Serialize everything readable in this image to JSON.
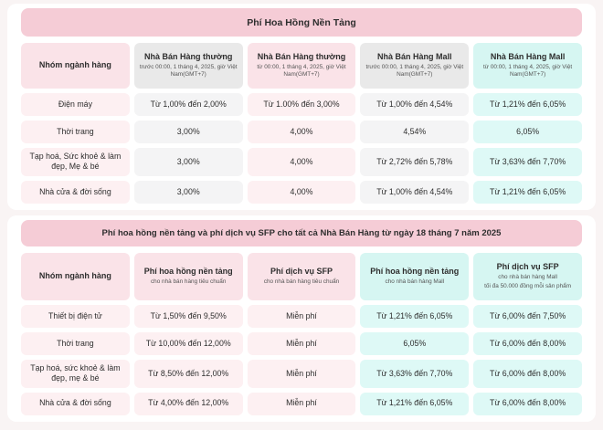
{
  "colors": {
    "page_background": "#f9f4f4",
    "card_background": "#ffffff",
    "title_bar_pink": "#f5ccd6",
    "header_pink": "#fae3e8",
    "header_gray": "#e9e9e9",
    "header_cyan": "#d6f6f2",
    "cell_pink": "#fdf0f2",
    "cell_gray": "#f4f4f5",
    "cell_cyan": "#def9f6",
    "text": "#2e2e2e"
  },
  "table1": {
    "title": "Phí Hoa Hồng Nền Tảng",
    "columns": [
      {
        "label": "Nhóm ngành hàng",
        "sub": ""
      },
      {
        "label": "Nhà Bán Hàng thường",
        "sub": "trước 00:00, 1 tháng 4, 2025, giờ Việt Nam(GMT+7)"
      },
      {
        "label": "Nhà Bán Hàng thường",
        "sub": "từ 00:00, 1 tháng 4, 2025, giờ Việt Nam(GMT+7)"
      },
      {
        "label": "Nhà Bán Hàng Mall",
        "sub": "trước 00:00, 1 tháng 4, 2025, giờ Việt Nam(GMT+7)"
      },
      {
        "label": "Nhà Bán Hàng Mall",
        "sub": "từ 00:00, 1 tháng 4, 2025, giờ Việt Nam(GMT+7)"
      }
    ],
    "rows": [
      {
        "category": "Điện máy",
        "values": [
          "Từ 1,00% đến 2,00%",
          "Từ 1.00% đến 3,00%",
          "Từ 1,00% đến 4,54%",
          "Từ 1,21% đến 6,05%"
        ]
      },
      {
        "category": "Thời trang",
        "values": [
          "3,00%",
          "4,00%",
          "4,54%",
          "6,05%"
        ]
      },
      {
        "category": "Tạp hoá, Sức khoẻ & làm đẹp, Mẹ & bé",
        "values": [
          "3,00%",
          "4,00%",
          "Từ 2,72% đến 5,78%",
          "Từ 3,63% đến 7,70%"
        ]
      },
      {
        "category": "Nhà cửa & đời sống",
        "values": [
          "3,00%",
          "4,00%",
          "Từ 1,00% đến 4,54%",
          "Từ 1,21% đến 6,05%"
        ]
      }
    ]
  },
  "table2": {
    "title": "Phí hoa hồng nền tảng và phí dịch vụ SFP cho tất cả Nhà Bán Hàng từ ngày 18 tháng 7 năm 2025",
    "columns": [
      {
        "label": "Nhóm ngành hàng",
        "sub": ""
      },
      {
        "label": "Phí hoa hồng nền tảng",
        "sub": "cho nhà bán hàng tiêu chuẩn"
      },
      {
        "label": "Phí dịch vụ SFP",
        "sub": "cho nhà bán hàng tiêu chuẩn"
      },
      {
        "label": "Phí hoa hồng nền tảng",
        "sub": "cho nhà bán hàng Mall"
      },
      {
        "label": "Phí dịch vụ SFP",
        "sub": "cho nhà bán hàng Mall",
        "sub2": "tối đa 50.000 đồng mỗi sản phẩm"
      }
    ],
    "rows": [
      {
        "category": "Thiết bị điện tử",
        "values": [
          "Từ 1,50% đến 9,50%",
          "Miễn phí",
          "Từ 1,21% đến 6,05%",
          "Từ 6,00% đến 7,50%"
        ]
      },
      {
        "category": "Thời trang",
        "values": [
          "Từ 10,00% đến 12,00%",
          "Miễn phí",
          "6,05%",
          "Từ 6,00% đến 8,00%"
        ]
      },
      {
        "category": "Tạp hoá, sức khoẻ & làm đẹp, mẹ & bé",
        "values": [
          "Từ 8,50% đến 12,00%",
          "Miễn phí",
          "Từ 3,63% đến 7,70%",
          "Từ 6,00% đến 8,00%"
        ]
      },
      {
        "category": "Nhà cửa & đời sống",
        "values": [
          "Từ 4,00% đến 12,00%",
          "Miễn phí",
          "Từ 1,21% đến 6,05%",
          "Từ 6,00% đến 8,00%"
        ]
      }
    ]
  }
}
